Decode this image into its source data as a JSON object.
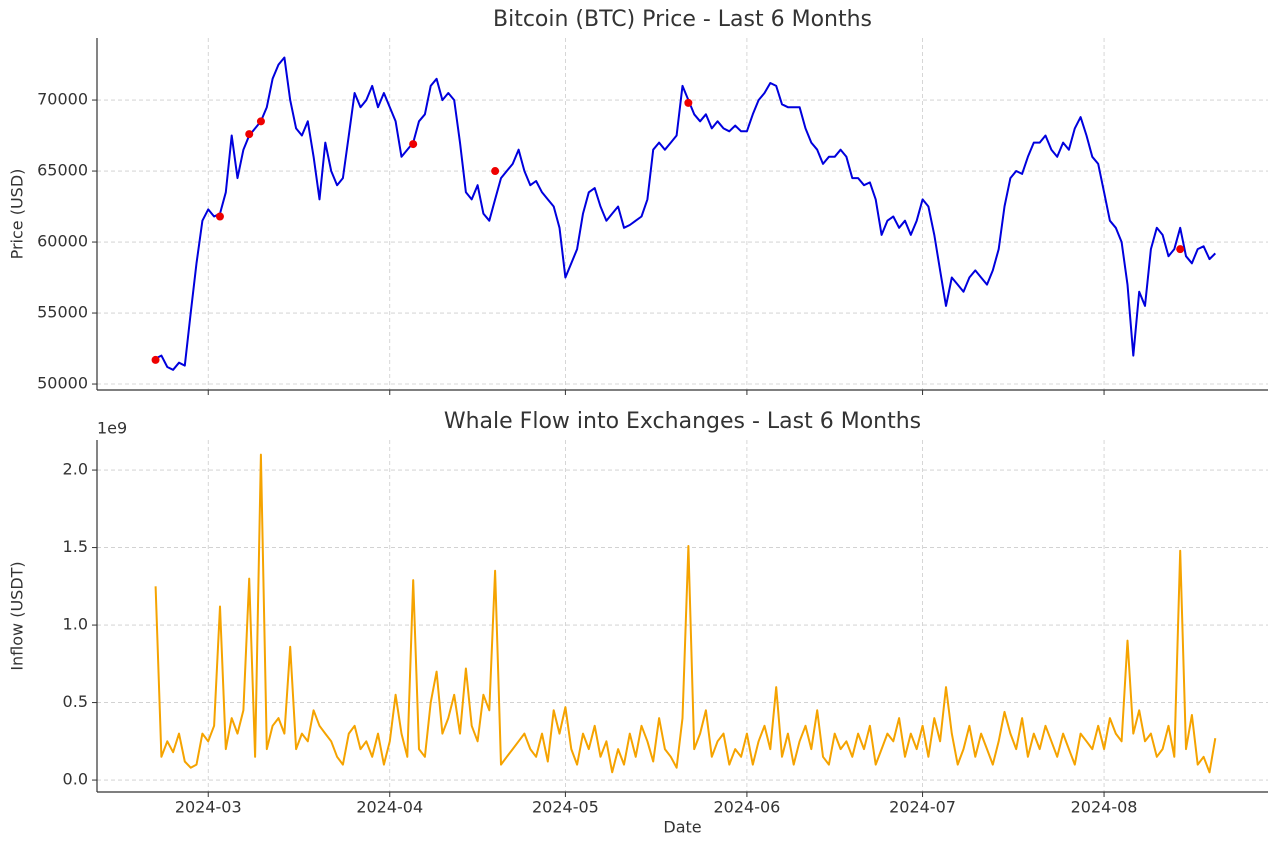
{
  "chart_data": [
    {
      "type": "line",
      "title": "Bitcoin (BTC) Price - Last 6 Months",
      "ylabel": "Price (USD)",
      "ylim": [
        49580,
        74370
      ],
      "yticks": [
        50000,
        55000,
        60000,
        65000,
        70000
      ],
      "grid": true,
      "series": [
        {
          "color": "#0000dd",
          "values": [
            51800,
            52000,
            51200,
            51000,
            51500,
            51300,
            55000,
            58500,
            61500,
            62300,
            61800,
            62000,
            63500,
            67500,
            64500,
            66500,
            67500,
            68000,
            68500,
            69500,
            71500,
            72500,
            73000,
            70000,
            68000,
            67500,
            68500,
            66000,
            63000,
            67000,
            65000,
            64000,
            64500,
            67500,
            70500,
            69500,
            70000,
            71000,
            69500,
            70500,
            69500,
            68500,
            66000,
            66500,
            67000,
            68500,
            69000,
            71000,
            71500,
            70000,
            70500,
            70000,
            67000,
            63500,
            63000,
            64000,
            62000,
            61500,
            63000,
            64500,
            65000,
            65500,
            66500,
            65000,
            64000,
            64300,
            63500,
            63000,
            62500,
            61000,
            57500,
            58500,
            59500,
            62000,
            63500,
            63800,
            62500,
            61500,
            62000,
            62500,
            61000,
            61200,
            61500,
            61800,
            63000,
            66500,
            67000,
            66500,
            67000,
            67500,
            71000,
            70000,
            69000,
            68500,
            69000,
            68000,
            68500,
            68000,
            67800,
            68200,
            67800,
            67800,
            69000,
            70000,
            70500,
            71200,
            71000,
            69700,
            69500,
            69500,
            69500,
            68000,
            67000,
            66500,
            65500,
            66000,
            66000,
            66500,
            66000,
            64500,
            64500,
            64000,
            64200,
            63000,
            60500,
            61500,
            61800,
            61000,
            61500,
            60500,
            61500,
            63000,
            62500,
            60500,
            58000,
            55500,
            57500,
            57000,
            56500,
            57500,
            58000,
            57500,
            57000,
            58000,
            59500,
            62500,
            64500,
            65000,
            64800,
            66000,
            67000,
            67000,
            67500,
            66500,
            66000,
            67000,
            66500,
            68000,
            68800,
            67500,
            66000,
            65500,
            63500,
            61500,
            61000,
            60000,
            57000,
            52000,
            56500,
            55500,
            59500,
            61000,
            60500,
            59000,
            59500,
            61000,
            59000,
            58500,
            59500,
            59700,
            58800,
            59200
          ]
        }
      ],
      "markers": {
        "color": "#ee0000",
        "x": [
          0,
          11,
          16,
          18,
          44,
          58,
          91,
          175
        ],
        "values": [
          51700,
          61800,
          67600,
          68500,
          66900,
          65000,
          69800,
          59500
        ]
      }
    },
    {
      "type": "line",
      "title": "Whale Flow into Exchanges - Last 6 Months",
      "ylabel": "Inflow (USDT)",
      "xlabel": "Date",
      "y_offset_label": "1e9",
      "ylim": [
        -0.077,
        2.194
      ],
      "yticks": [
        {
          "value": 0,
          "label": "0.0"
        },
        0.5,
        {
          "value": 1,
          "label": "1.0"
        },
        1.5,
        {
          "value": 2,
          "label": "2.0"
        }
      ],
      "grid": true,
      "xlim": [
        -10,
        190
      ],
      "xticks": [
        {
          "value": 9,
          "label": "2024-03"
        },
        {
          "value": 40,
          "label": "2024-04"
        },
        {
          "value": 70,
          "label": "2024-05"
        },
        {
          "value": 101,
          "label": "2024-06"
        },
        {
          "value": 131,
          "label": "2024-07"
        },
        {
          "value": 162,
          "label": "2024-08"
        }
      ],
      "series": [
        {
          "color": "#f5a300",
          "values": [
            1.25,
            0.15,
            0.25,
            0.18,
            0.3,
            0.12,
            0.08,
            0.1,
            0.3,
            0.25,
            0.35,
            1.12,
            0.2,
            0.4,
            0.3,
            0.45,
            1.3,
            0.15,
            2.1,
            0.2,
            0.35,
            0.4,
            0.3,
            0.86,
            0.2,
            0.3,
            0.25,
            0.45,
            0.35,
            0.3,
            0.25,
            0.15,
            0.1,
            0.3,
            0.35,
            0.2,
            0.25,
            0.15,
            0.3,
            0.1,
            0.25,
            0.55,
            0.3,
            0.15,
            1.29,
            0.2,
            0.15,
            0.5,
            0.7,
            0.3,
            0.4,
            0.55,
            0.3,
            0.72,
            0.35,
            0.25,
            0.55,
            0.45,
            1.35,
            0.1,
            0.15,
            0.2,
            0.25,
            0.3,
            0.2,
            0.15,
            0.3,
            0.12,
            0.45,
            0.3,
            0.47,
            0.2,
            0.1,
            0.3,
            0.2,
            0.35,
            0.15,
            0.25,
            0.05,
            0.2,
            0.1,
            0.3,
            0.15,
            0.35,
            0.25,
            0.12,
            0.4,
            0.2,
            0.15,
            0.08,
            0.4,
            1.51,
            0.2,
            0.3,
            0.45,
            0.15,
            0.25,
            0.3,
            0.1,
            0.2,
            0.15,
            0.3,
            0.1,
            0.25,
            0.35,
            0.2,
            0.6,
            0.15,
            0.3,
            0.1,
            0.25,
            0.35,
            0.2,
            0.45,
            0.15,
            0.1,
            0.3,
            0.2,
            0.25,
            0.15,
            0.3,
            0.2,
            0.35,
            0.1,
            0.2,
            0.3,
            0.25,
            0.4,
            0.15,
            0.3,
            0.2,
            0.35,
            0.15,
            0.4,
            0.25,
            0.6,
            0.3,
            0.1,
            0.2,
            0.35,
            0.15,
            0.3,
            0.2,
            0.1,
            0.25,
            0.44,
            0.3,
            0.2,
            0.4,
            0.15,
            0.3,
            0.2,
            0.35,
            0.25,
            0.15,
            0.3,
            0.2,
            0.1,
            0.3,
            0.25,
            0.2,
            0.35,
            0.2,
            0.4,
            0.3,
            0.25,
            0.9,
            0.3,
            0.45,
            0.25,
            0.3,
            0.15,
            0.2,
            0.35,
            0.15,
            1.48,
            0.2,
            0.42,
            0.1,
            0.15,
            0.05,
            0.27
          ]
        }
      ]
    }
  ]
}
